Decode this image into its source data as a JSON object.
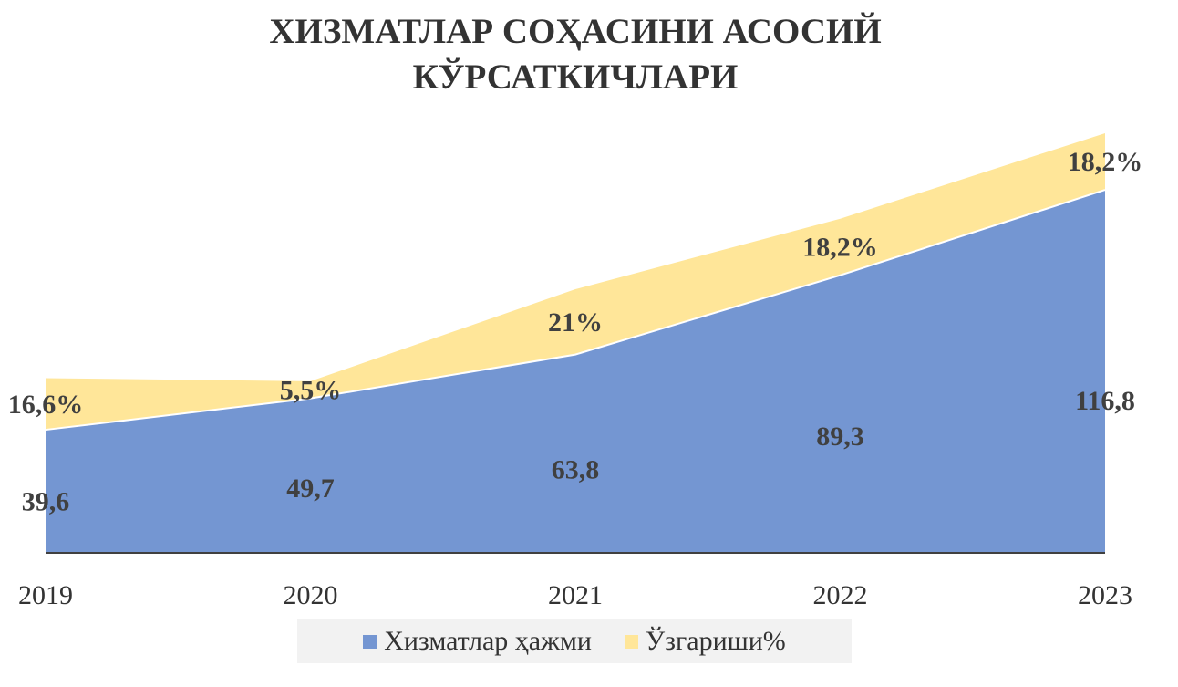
{
  "chart_data": {
    "type": "area",
    "stacked": true,
    "title_lines": [
      "ХИЗМАТЛАР СОҲАСИНИ АСОСИЙ",
      "КЎРСАТКИЧЛАРИ"
    ],
    "categories": [
      "2019",
      "2020",
      "2021",
      "2022",
      "2023"
    ],
    "series": [
      {
        "name": "Хизматлар ҳажми",
        "color": "#7496d2",
        "values": [
          39.6,
          49.7,
          63.8,
          89.3,
          116.8
        ],
        "labels": [
          "39,6",
          "49,7",
          "63,8",
          "89,3",
          "116,8"
        ]
      },
      {
        "name": "Ўзгариши%",
        "color": "#ffe699",
        "values": [
          16.6,
          5.5,
          21.0,
          18.2,
          18.2
        ],
        "labels": [
          "16,6%",
          "5,5%",
          "21%",
          "18,2%",
          "18,2%"
        ]
      }
    ],
    "ylim": [
      0,
      135
    ],
    "grid": false,
    "legend_position": "bottom"
  }
}
